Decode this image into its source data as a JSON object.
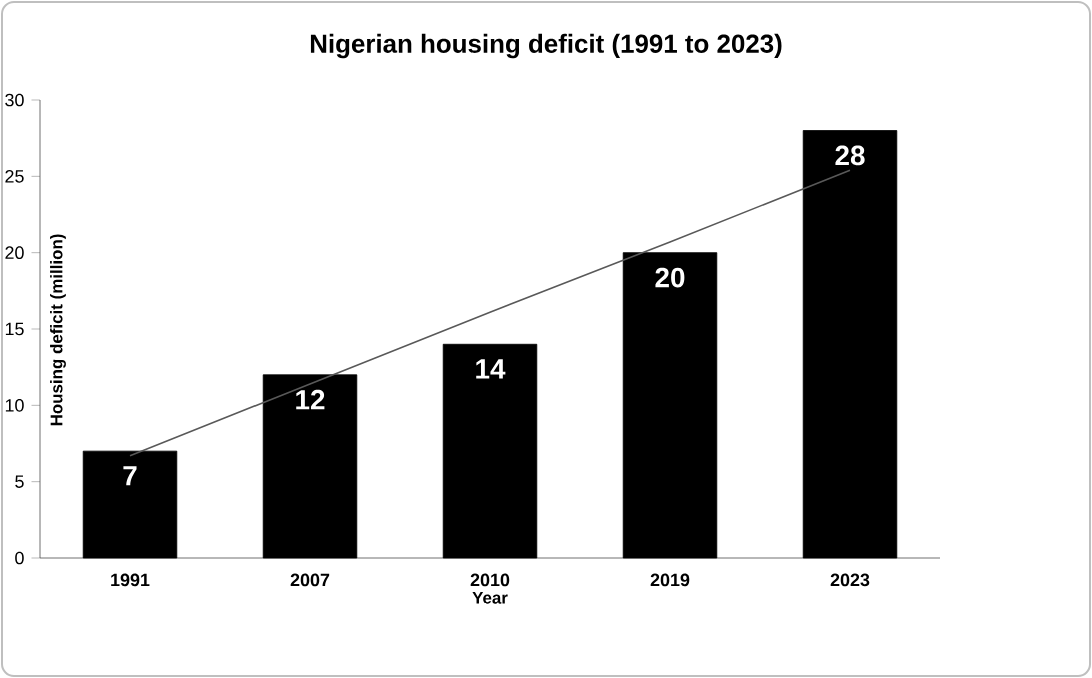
{
  "chart_data": {
    "type": "bar",
    "title": "Nigerian housing deficit (1991 to 2023)",
    "xlabel": "Year",
    "ylabel": "Housing deficit (million)",
    "categories": [
      "1991",
      "2007",
      "2010",
      "2019",
      "2023"
    ],
    "series": [
      {
        "values": [
          7,
          12,
          14,
          20,
          28
        ],
        "value_labels": [
          "7",
          "12",
          "14",
          "20",
          "28"
        ],
        "color": "#000000"
      },
      {
        "type": "line",
        "values": [
          6.7,
          11.4,
          16.1,
          20.7,
          25.4
        ],
        "color": "#595959"
      }
    ],
    "ylim": [
      0,
      30
    ],
    "yticks": [
      0,
      5,
      10,
      15,
      20,
      25,
      30
    ]
  }
}
